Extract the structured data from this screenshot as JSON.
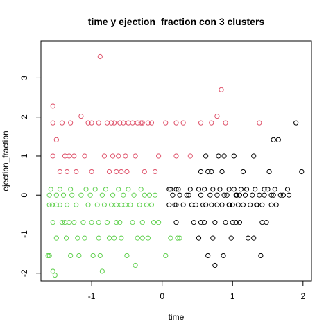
{
  "chart_data": {
    "type": "scatter",
    "title": "time  y  ejection_fraction con  3  clusters",
    "xlabel": "time",
    "ylabel": "ejection_fraction",
    "xlim": [
      -1.72,
      2.12
    ],
    "ylim": [
      -2.2,
      3.95
    ],
    "xticks": [
      -1,
      0,
      1,
      2
    ],
    "yticks": [
      -2,
      -1,
      0,
      1,
      2,
      3
    ],
    "grid": false,
    "legend": "none",
    "marker": "open-circle",
    "series": [
      {
        "color": "#000000",
        "points": [
          [
            0.1,
            0.15
          ],
          [
            0.1,
            -0.25
          ],
          [
            0.12,
            0.15
          ],
          [
            0.15,
            0.0
          ],
          [
            0.18,
            -0.25
          ],
          [
            0.2,
            0.15
          ],
          [
            0.2,
            -0.25
          ],
          [
            0.2,
            -0.7
          ],
          [
            0.23,
            0.15
          ],
          [
            0.25,
            0.0
          ],
          [
            0.3,
            -0.25
          ],
          [
            0.35,
            0.0
          ],
          [
            0.4,
            0.15
          ],
          [
            0.42,
            -0.25
          ],
          [
            0.45,
            -0.7
          ],
          [
            0.48,
            -0.25
          ],
          [
            0.52,
            -1.1
          ],
          [
            0.52,
            0.15
          ],
          [
            0.55,
            -0.7
          ],
          [
            0.55,
            0.6
          ],
          [
            0.55,
            0.0
          ],
          [
            0.58,
            -0.25
          ],
          [
            0.6,
            -0.7
          ],
          [
            0.6,
            0.15
          ],
          [
            0.62,
            -0.25
          ],
          [
            0.62,
            1.0
          ],
          [
            0.65,
            0.6
          ],
          [
            0.65,
            -1.55
          ],
          [
            0.68,
            0.0
          ],
          [
            0.7,
            -0.25
          ],
          [
            0.7,
            0.6
          ],
          [
            0.72,
            0.15
          ],
          [
            0.72,
            -1.1
          ],
          [
            0.75,
            -0.7
          ],
          [
            0.75,
            -1.8
          ],
          [
            0.78,
            0.0
          ],
          [
            0.78,
            -0.25
          ],
          [
            0.8,
            1.0
          ],
          [
            0.82,
            0.15
          ],
          [
            0.85,
            -0.25
          ],
          [
            0.85,
            0.6
          ],
          [
            0.87,
            -1.55
          ],
          [
            0.88,
            1.0
          ],
          [
            0.9,
            -0.7
          ],
          [
            0.92,
            0.0
          ],
          [
            0.95,
            -0.25
          ],
          [
            0.95,
            0.15
          ],
          [
            0.98,
            -1.1
          ],
          [
            1.0,
            -0.7
          ],
          [
            1.0,
            -0.25
          ],
          [
            1.02,
            0.15
          ],
          [
            1.02,
            1.0
          ],
          [
            1.05,
            0.0
          ],
          [
            1.05,
            -0.7
          ],
          [
            1.08,
            -0.25
          ],
          [
            1.1,
            0.0
          ],
          [
            1.1,
            -0.7
          ],
          [
            1.12,
            0.15
          ],
          [
            1.15,
            0.6
          ],
          [
            1.15,
            -0.25
          ],
          [
            1.18,
            0.0
          ],
          [
            1.2,
            0.15
          ],
          [
            1.22,
            -1.1
          ],
          [
            1.25,
            -0.25
          ],
          [
            1.28,
            0.0
          ],
          [
            1.3,
            1.0
          ],
          [
            1.32,
            0.15
          ],
          [
            1.35,
            -0.25
          ],
          [
            1.38,
            0.0
          ],
          [
            1.4,
            -1.55
          ],
          [
            1.42,
            -0.25
          ],
          [
            1.45,
            0.15
          ],
          [
            1.45,
            0.0
          ],
          [
            1.48,
            -0.7
          ],
          [
            1.5,
            0.15
          ],
          [
            1.52,
            0.6
          ],
          [
            1.55,
            0.0
          ],
          [
            1.55,
            -0.25
          ],
          [
            1.58,
            1.42
          ],
          [
            1.6,
            0.15
          ],
          [
            1.62,
            -0.25
          ],
          [
            1.65,
            1.42
          ],
          [
            1.68,
            0.0
          ],
          [
            1.72,
            0.0
          ],
          [
            1.78,
            0.15
          ],
          [
            1.8,
            0.0
          ],
          [
            1.9,
            1.85
          ],
          [
            1.98,
            0.6
          ],
          [
            0.38,
            0.0
          ],
          [
            0.96,
            -0.25
          ],
          [
            1.3,
            -1.1
          ],
          [
            1.06,
            0.0
          ],
          [
            1.42,
            -0.7
          ],
          [
            1.58,
            0.0
          ],
          [
            0.88,
            0.0
          ],
          [
            1.34,
            -0.25
          ]
        ]
      },
      {
        "color": "#df536b",
        "points": [
          [
            -1.55,
            2.28
          ],
          [
            -1.55,
            1.85
          ],
          [
            -1.5,
            1.42
          ],
          [
            -1.55,
            1.0
          ],
          [
            -1.45,
            0.6
          ],
          [
            -1.42,
            1.85
          ],
          [
            -1.38,
            1.0
          ],
          [
            -1.35,
            0.6
          ],
          [
            -1.32,
            1.0
          ],
          [
            -1.3,
            1.85
          ],
          [
            -1.25,
            1.0
          ],
          [
            -1.22,
            0.6
          ],
          [
            -1.15,
            2.02
          ],
          [
            -1.1,
            1.0
          ],
          [
            -1.05,
            1.85
          ],
          [
            -1.0,
            1.85
          ],
          [
            -0.9,
            1.85
          ],
          [
            -0.88,
            3.55
          ],
          [
            -0.82,
            1.0
          ],
          [
            -0.78,
            1.85
          ],
          [
            -0.75,
            0.6
          ],
          [
            -0.72,
            1.85
          ],
          [
            -0.7,
            1.0
          ],
          [
            -0.68,
            1.85
          ],
          [
            -0.65,
            0.6
          ],
          [
            -0.6,
            1.85
          ],
          [
            -0.55,
            1.85
          ],
          [
            -0.52,
            1.0
          ],
          [
            -0.5,
            0.6
          ],
          [
            -0.48,
            1.85
          ],
          [
            -0.42,
            1.85
          ],
          [
            -0.38,
            1.0
          ],
          [
            -0.35,
            1.85
          ],
          [
            -0.3,
            1.85
          ],
          [
            -0.28,
            1.85
          ],
          [
            -0.25,
            0.6
          ],
          [
            -0.2,
            1.85
          ],
          [
            -0.15,
            1.85
          ],
          [
            -0.1,
            0.6
          ],
          [
            -0.05,
            1.0
          ],
          [
            0.05,
            1.85
          ],
          [
            0.2,
            1.0
          ],
          [
            0.2,
            1.85
          ],
          [
            0.3,
            1.85
          ],
          [
            0.4,
            1.0
          ],
          [
            0.55,
            1.85
          ],
          [
            0.7,
            1.85
          ],
          [
            0.78,
            2.02
          ],
          [
            0.84,
            2.7
          ],
          [
            0.9,
            1.85
          ],
          [
            1.38,
            1.85
          ],
          [
            -0.58,
            0.6
          ],
          [
            -1.0,
            0.6
          ],
          [
            -0.62,
            1.0
          ]
        ]
      },
      {
        "color": "#61d04f",
        "points": [
          [
            -1.62,
            -1.55
          ],
          [
            -1.6,
            -1.55
          ],
          [
            -1.6,
            0.0
          ],
          [
            -1.6,
            -0.25
          ],
          [
            -1.58,
            0.15
          ],
          [
            -1.56,
            -0.25
          ],
          [
            -1.55,
            -1.95
          ],
          [
            -1.55,
            -0.7
          ],
          [
            -1.52,
            -2.05
          ],
          [
            -1.5,
            -0.25
          ],
          [
            -1.5,
            0.0
          ],
          [
            -1.5,
            -1.1
          ],
          [
            -1.45,
            0.15
          ],
          [
            -1.45,
            -0.25
          ],
          [
            -1.42,
            -0.7
          ],
          [
            -1.4,
            0.0
          ],
          [
            -1.38,
            -0.7
          ],
          [
            -1.35,
            -0.25
          ],
          [
            -1.32,
            -0.7
          ],
          [
            -1.3,
            0.15
          ],
          [
            -1.3,
            -1.55
          ],
          [
            -1.28,
            0.0
          ],
          [
            -1.25,
            -0.7
          ],
          [
            -1.22,
            -0.25
          ],
          [
            -1.2,
            -1.1
          ],
          [
            -1.18,
            -1.55
          ],
          [
            -1.15,
            0.0
          ],
          [
            -1.12,
            -0.7
          ],
          [
            -1.1,
            -1.1
          ],
          [
            -1.08,
            0.15
          ],
          [
            -1.05,
            -0.25
          ],
          [
            -1.02,
            0.0
          ],
          [
            -1.0,
            -0.7
          ],
          [
            -0.98,
            -1.55
          ],
          [
            -0.95,
            0.15
          ],
          [
            -0.92,
            -0.25
          ],
          [
            -0.9,
            -1.1
          ],
          [
            -0.88,
            -1.55
          ],
          [
            -0.85,
            -1.95
          ],
          [
            -0.85,
            0.0
          ],
          [
            -0.82,
            -0.25
          ],
          [
            -0.8,
            0.15
          ],
          [
            -0.78,
            -0.7
          ],
          [
            -0.75,
            -1.1
          ],
          [
            -0.72,
            -0.25
          ],
          [
            -0.7,
            0.0
          ],
          [
            -0.68,
            -1.1
          ],
          [
            -0.65,
            -0.25
          ],
          [
            -0.62,
            0.15
          ],
          [
            -0.6,
            -0.7
          ],
          [
            -0.58,
            -1.1
          ],
          [
            -0.55,
            0.0
          ],
          [
            -0.52,
            -0.25
          ],
          [
            -0.5,
            -1.55
          ],
          [
            -0.48,
            0.15
          ],
          [
            -0.45,
            -0.25
          ],
          [
            -0.42,
            -0.7
          ],
          [
            -0.4,
            0.0
          ],
          [
            -0.38,
            -1.8
          ],
          [
            -0.35,
            -1.1
          ],
          [
            -0.32,
            -0.25
          ],
          [
            -0.3,
            0.15
          ],
          [
            -0.28,
            -0.7
          ],
          [
            -0.25,
            0.0
          ],
          [
            -0.22,
            -0.25
          ],
          [
            -0.2,
            -1.1
          ],
          [
            -0.18,
            0.0
          ],
          [
            -0.15,
            -0.25
          ],
          [
            -0.12,
            -0.7
          ],
          [
            -0.1,
            0.0
          ],
          [
            -0.05,
            -0.7
          ],
          [
            0.05,
            -1.55
          ],
          [
            0.12,
            -1.1
          ],
          [
            0.22,
            -1.1
          ],
          [
            0.25,
            -1.1
          ],
          [
            -0.65,
            -0.7
          ],
          [
            -0.9,
            -0.7
          ],
          [
            -1.36,
            -1.1
          ],
          [
            -0.58,
            -0.25
          ],
          [
            -0.28,
            -1.1
          ]
        ]
      }
    ]
  }
}
